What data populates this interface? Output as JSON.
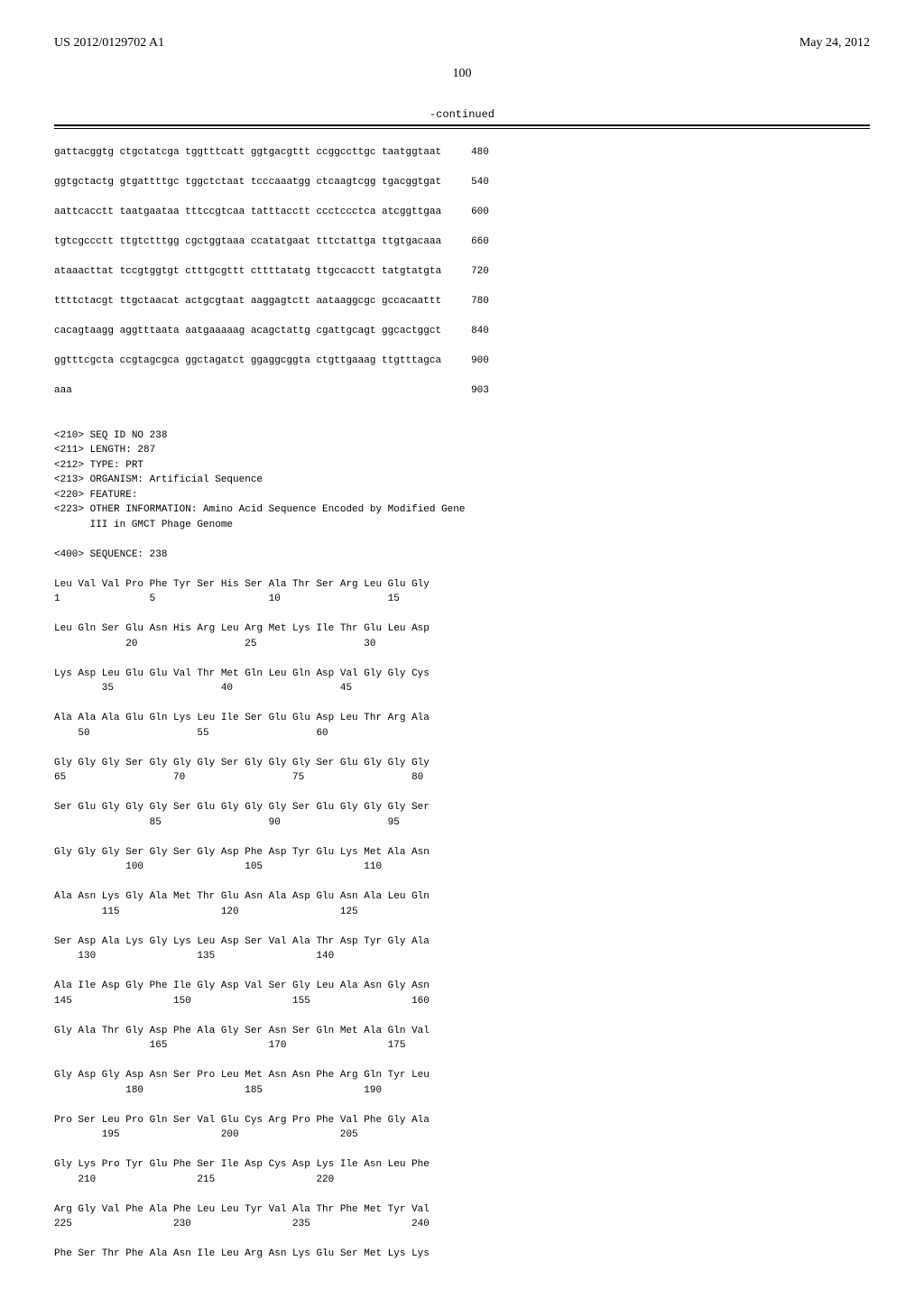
{
  "header": {
    "pub_number": "US 2012/0129702 A1",
    "pub_date": "May 24, 2012"
  },
  "page_number": "100",
  "continued_label": "-continued",
  "nucleotide_lines": [
    {
      "seq": "gattacggtg ctgctatcga tggtttcatt ggtgacgttt ccggccttgc taatggtaat",
      "num": "480"
    },
    {
      "seq": "ggtgctactg gtgattttgc tggctctaat tcccaaatgg ctcaagtcgg tgacggtgat",
      "num": "540"
    },
    {
      "seq": "aattcacctt taatgaataa tttccgtcaa tatttacctt ccctccctca atcggttgaa",
      "num": "600"
    },
    {
      "seq": "tgtcgccctt ttgtctttgg cgctggtaaa ccatatgaat tttctattga ttgtgacaaa",
      "num": "660"
    },
    {
      "seq": "ataaacttat tccgtggtgt ctttgcgttt cttttatatg ttgccacctt tatgtatgta",
      "num": "720"
    },
    {
      "seq": "ttttctacgt ttgctaacat actgcgtaat aaggagtctt aataaggcgc gccacaattt",
      "num": "780"
    },
    {
      "seq": "cacagtaagg aggtttaata aatgaaaaag acagctattg cgattgcagt ggcactggct",
      "num": "840"
    },
    {
      "seq": "ggtttcgcta ccgtagcgca ggctagatct ggaggcggta ctgttgaaag ttgtttagca",
      "num": "900"
    },
    {
      "seq": "aaa",
      "num": "903"
    }
  ],
  "seq_header": {
    "l1": "<210> SEQ ID NO 238",
    "l2": "<211> LENGTH: 287",
    "l3": "<212> TYPE: PRT",
    "l4": "<213> ORGANISM: Artificial Sequence",
    "l5": "<220> FEATURE:",
    "l6": "<223> OTHER INFORMATION: Amino Acid Sequence Encoded by Modified Gene",
    "l7": "      III in GMCT Phage Genome",
    "l8": "<400> SEQUENCE: 238"
  },
  "protein_lines": [
    "Leu Val Val Pro Phe Tyr Ser His Ser Ala Thr Ser Arg Leu Glu Gly",
    "1               5                   10                  15",
    "",
    "Leu Gln Ser Glu Asn His Arg Leu Arg Met Lys Ile Thr Glu Leu Asp",
    "            20                  25                  30",
    "",
    "Lys Asp Leu Glu Glu Val Thr Met Gln Leu Gln Asp Val Gly Gly Cys",
    "        35                  40                  45",
    "",
    "Ala Ala Ala Glu Gln Lys Leu Ile Ser Glu Glu Asp Leu Thr Arg Ala",
    "    50                  55                  60",
    "",
    "Gly Gly Gly Ser Gly Gly Gly Ser Gly Gly Gly Ser Glu Gly Gly Gly",
    "65                  70                  75                  80",
    "",
    "Ser Glu Gly Gly Gly Ser Glu Gly Gly Gly Ser Glu Gly Gly Gly Ser",
    "                85                  90                  95",
    "",
    "Gly Gly Gly Ser Gly Ser Gly Asp Phe Asp Tyr Glu Lys Met Ala Asn",
    "            100                 105                 110",
    "",
    "Ala Asn Lys Gly Ala Met Thr Glu Asn Ala Asp Glu Asn Ala Leu Gln",
    "        115                 120                 125",
    "",
    "Ser Asp Ala Lys Gly Lys Leu Asp Ser Val Ala Thr Asp Tyr Gly Ala",
    "    130                 135                 140",
    "",
    "Ala Ile Asp Gly Phe Ile Gly Asp Val Ser Gly Leu Ala Asn Gly Asn",
    "145                 150                 155                 160",
    "",
    "Gly Ala Thr Gly Asp Phe Ala Gly Ser Asn Ser Gln Met Ala Gln Val",
    "                165                 170                 175",
    "",
    "Gly Asp Gly Asp Asn Ser Pro Leu Met Asn Asn Phe Arg Gln Tyr Leu",
    "            180                 185                 190",
    "",
    "Pro Ser Leu Pro Gln Ser Val Glu Cys Arg Pro Phe Val Phe Gly Ala",
    "        195                 200                 205",
    "",
    "Gly Lys Pro Tyr Glu Phe Ser Ile Asp Cys Asp Lys Ile Asn Leu Phe",
    "    210                 215                 220",
    "",
    "Arg Gly Val Phe Ala Phe Leu Leu Tyr Val Ala Thr Phe Met Tyr Val",
    "225                 230                 235                 240",
    "",
    "Phe Ser Thr Phe Ala Asn Ile Leu Arg Asn Lys Glu Ser Met Lys Lys"
  ]
}
